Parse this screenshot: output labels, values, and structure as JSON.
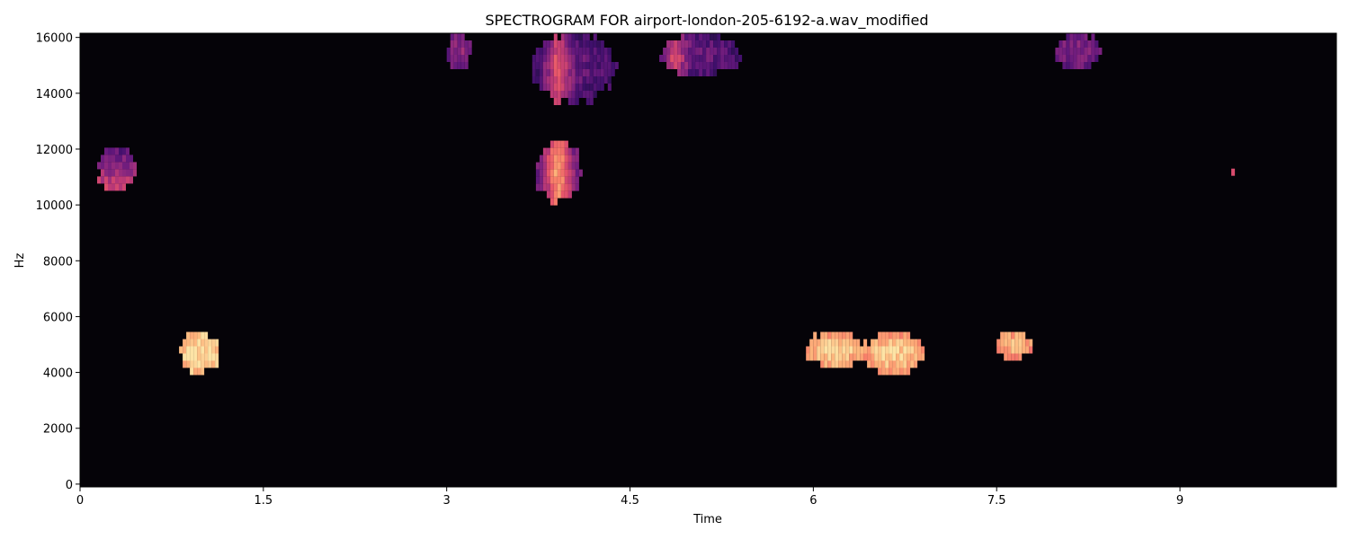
{
  "chart_data": {
    "type": "heatmap",
    "title": "SPECTROGRAM FOR airport-london-205-6192-a.wav_modified",
    "xlabel": "Time",
    "ylabel": "Hz",
    "xlim": [
      0,
      10.28
    ],
    "ylim": [
      -100,
      16150
    ],
    "x_ticks": [
      0,
      1.5,
      3,
      4.5,
      6,
      7.5,
      9
    ],
    "x_tick_labels": [
      "0",
      "1.5",
      "3",
      "4.5",
      "6",
      "7.5",
      "9"
    ],
    "y_ticks": [
      0,
      2000,
      4000,
      6000,
      8000,
      10000,
      12000,
      14000,
      16000
    ],
    "y_tick_labels": [
      "0",
      "2000",
      "4000",
      "6000",
      "8000",
      "10000",
      "12000",
      "14000",
      "16000"
    ],
    "background_color": "#050308",
    "colormap": [
      "#1e0f3a",
      "#3e0f6a",
      "#67197d",
      "#932b7e",
      "#c03b75",
      "#e7556a",
      "#f9836a",
      "#fdb47b",
      "#fde3a5"
    ],
    "blobs": [
      {
        "t0": 0.14,
        "t1": 0.46,
        "f0": 10550,
        "f1": 12050,
        "lo": 0.22,
        "hi": 0.58,
        "bright": "bottom"
      },
      {
        "t0": 0.81,
        "t1": 1.14,
        "f0": 3950,
        "f1": 5450,
        "lo": 0.82,
        "hi": 1.0,
        "bright": "center"
      },
      {
        "t0": 3.0,
        "t1": 3.2,
        "f0": 14850,
        "f1": 16150,
        "lo": 0.12,
        "hi": 0.38,
        "bright": "center"
      },
      {
        "t0": 3.7,
        "t1": 4.38,
        "f0": 13650,
        "f1": 16150,
        "lo": 0.12,
        "hi": 0.52,
        "bright": "vline",
        "vline": 3.91
      },
      {
        "t0": 3.73,
        "t1": 4.1,
        "f0": 10100,
        "f1": 12300,
        "lo": 0.25,
        "hi": 0.72,
        "bright": "vline",
        "vline": 3.91
      },
      {
        "t0": 4.74,
        "t1": 5.41,
        "f0": 14600,
        "f1": 16150,
        "lo": 0.12,
        "hi": 0.52,
        "bright": "vline",
        "vline": 4.86
      },
      {
        "t0": 5.94,
        "t1": 6.41,
        "f0": 4150,
        "f1": 5450,
        "lo": 0.66,
        "hi": 0.96,
        "bright": "center"
      },
      {
        "t0": 6.41,
        "t1": 6.9,
        "f0": 3950,
        "f1": 5450,
        "lo": 0.62,
        "hi": 0.96,
        "bright": "center"
      },
      {
        "t0": 7.5,
        "t1": 7.8,
        "f0": 4450,
        "f1": 5450,
        "lo": 0.66,
        "hi": 0.9,
        "bright": "center"
      },
      {
        "t0": 7.98,
        "t1": 8.35,
        "f0": 14850,
        "f1": 16150,
        "lo": 0.12,
        "hi": 0.34,
        "bright": "center"
      },
      {
        "t0": 9.42,
        "t1": 9.45,
        "f0": 11050,
        "f1": 11300,
        "lo": 0.55,
        "hi": 0.6,
        "bright": "center"
      }
    ]
  }
}
